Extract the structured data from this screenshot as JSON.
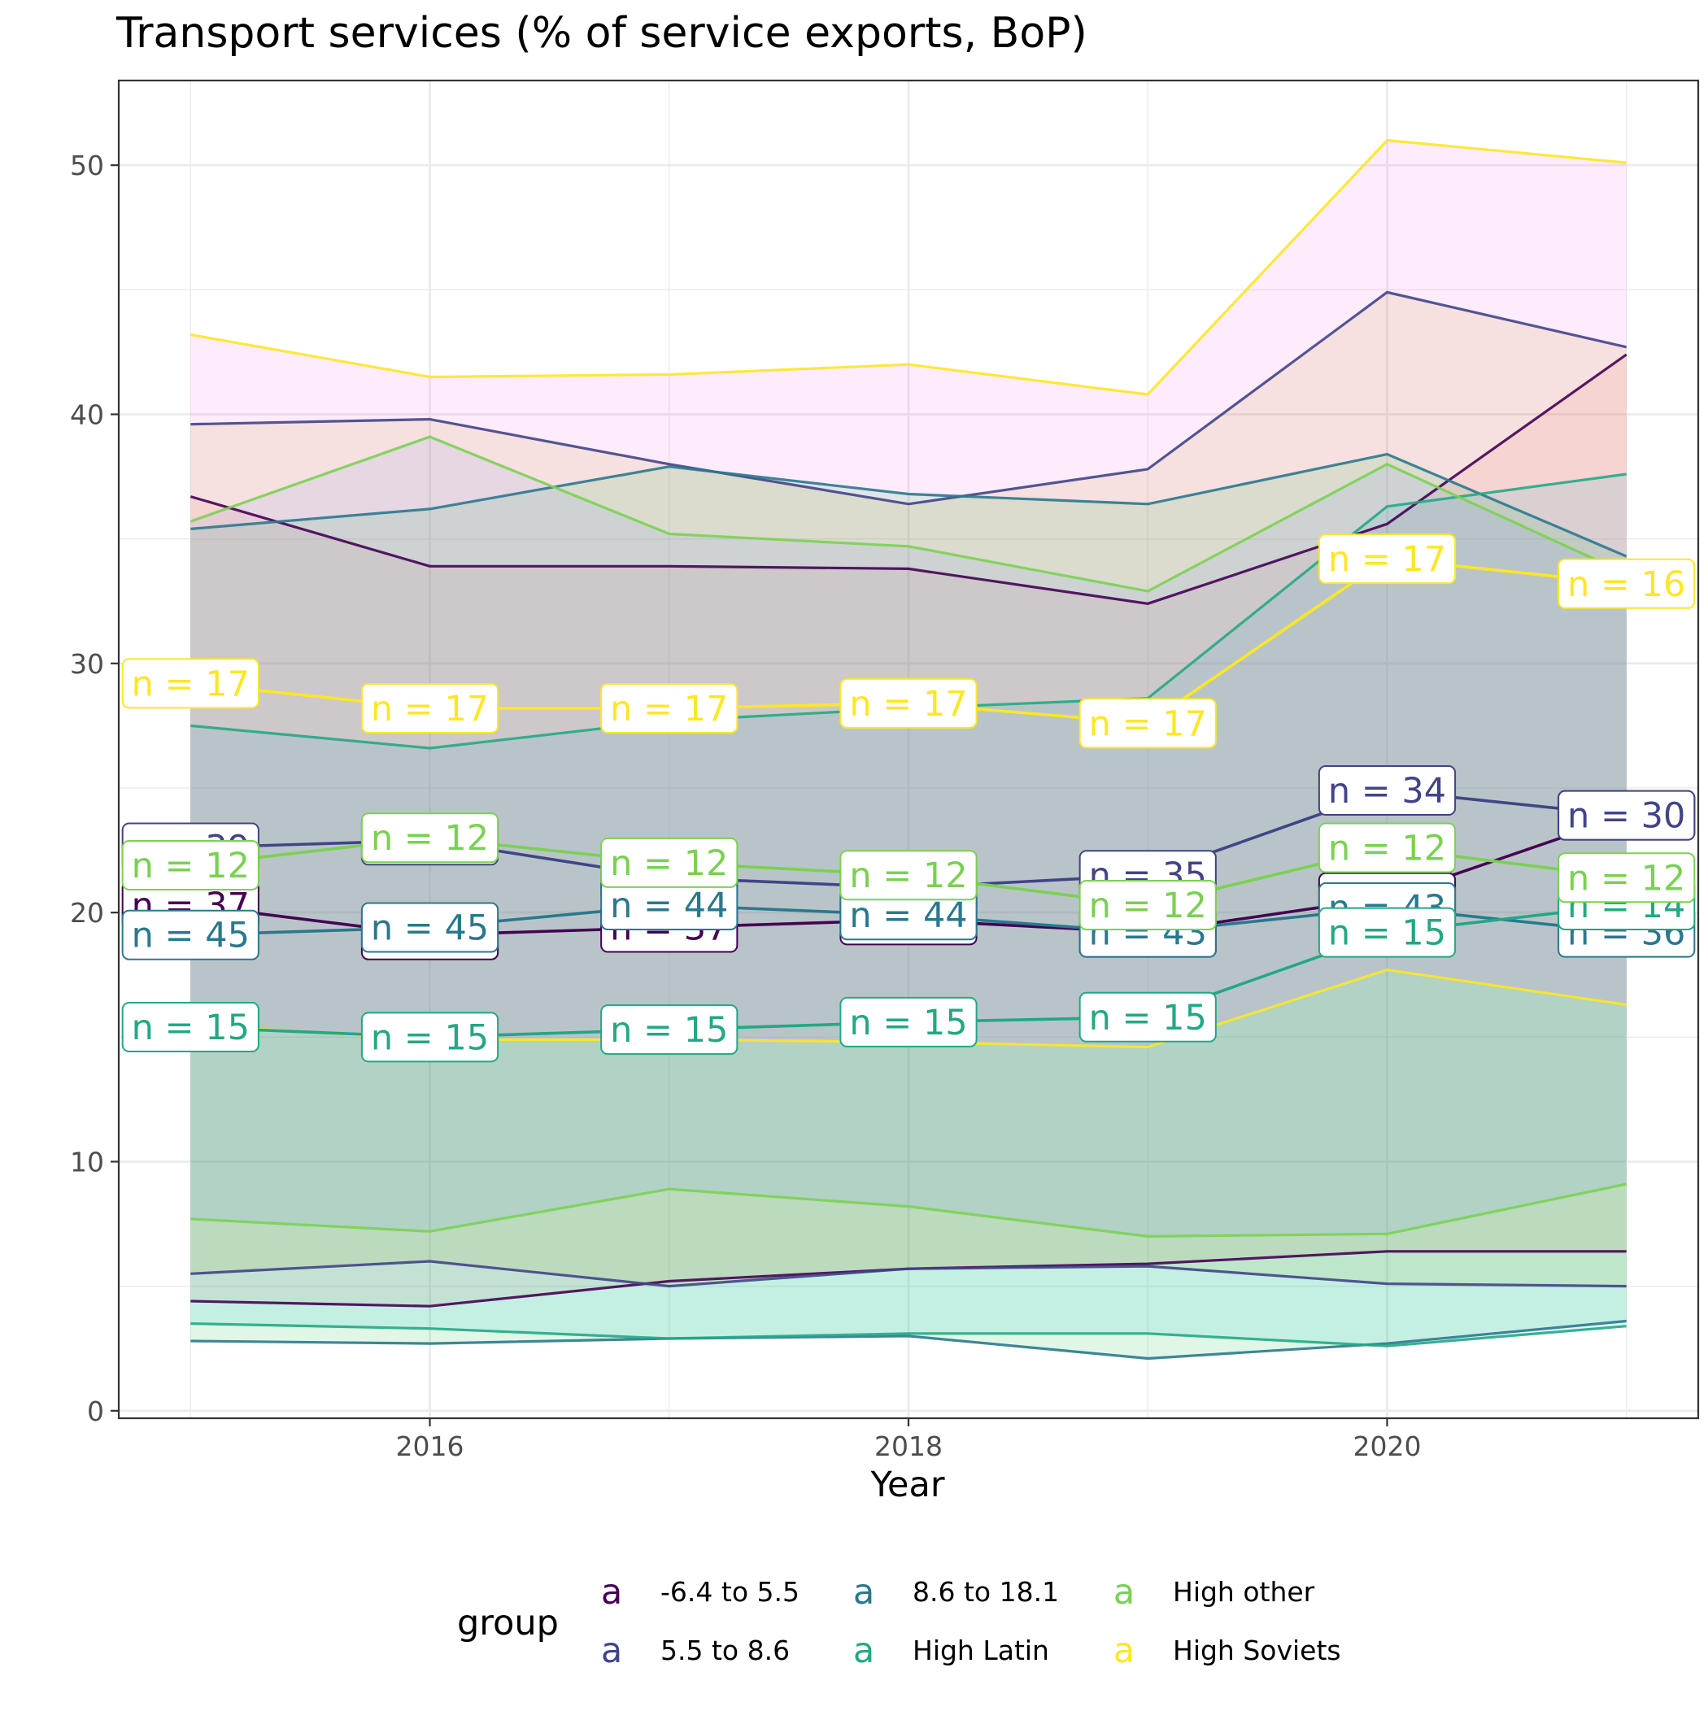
{
  "chart_data": {
    "type": "line",
    "title": "Transport services (% of service exports, BoP)",
    "xlabel": "Year",
    "ylabel": "",
    "x": [
      2015,
      2016,
      2017,
      2018,
      2019,
      2020,
      2021
    ],
    "x_ticks": [
      "2016",
      "2018",
      "2020"
    ],
    "x_tick_values": [
      2016,
      2018,
      2020
    ],
    "y_ticks": [
      "0",
      "10",
      "20",
      "30",
      "40",
      "50"
    ],
    "y_tick_values": [
      0,
      10,
      20,
      30,
      40,
      50
    ],
    "xlim": [
      2014.7,
      2021.3
    ],
    "ylim": [
      -0.3,
      53.4
    ],
    "grid": true,
    "legend": {
      "title": "group",
      "position": "bottom",
      "key_glyph": "a",
      "entries": [
        "-6.4 to 5.5",
        "5.5 to 8.6",
        "8.6 to 18.1",
        "High Latin",
        "High other",
        "High Soviets"
      ]
    },
    "series": [
      {
        "name": "-6.4 to 5.5",
        "color": "#440154",
        "fill": "#f8766d",
        "median": [
          20.3,
          19.1,
          19.4,
          19.7,
          19.2,
          20.6,
          23.9
        ],
        "upper": [
          36.7,
          33.9,
          33.9,
          33.8,
          32.4,
          35.6,
          42.4
        ],
        "lower": [
          4.4,
          4.2,
          5.2,
          5.7,
          5.9,
          6.4,
          6.4
        ],
        "n": [
          "n = 37",
          "n = 37",
          "n = 37",
          "n = 37",
          "n = 35",
          "n = 34",
          "n = 30"
        ]
      },
      {
        "name": "5.5 to 8.6",
        "color": "#414487",
        "fill": "#b79f00",
        "median": [
          22.6,
          22.9,
          21.4,
          21.0,
          21.5,
          24.9,
          23.9
        ],
        "upper": [
          39.6,
          39.8,
          38.0,
          36.4,
          37.8,
          44.9,
          42.7
        ],
        "lower": [
          5.5,
          6.0,
          5.0,
          5.7,
          5.8,
          5.1,
          5.0
        ],
        "n": [
          "n = 39",
          "n = 39",
          "n = 39",
          "n = 38",
          "n = 35",
          "n = 34",
          "n = 30"
        ]
      },
      {
        "name": "8.6 to 18.1",
        "color": "#2a788e",
        "fill": "#00ba38",
        "median": [
          19.1,
          19.4,
          20.3,
          19.9,
          19.2,
          20.2,
          19.2
        ],
        "upper": [
          35.4,
          36.2,
          37.9,
          36.8,
          36.4,
          38.4,
          34.3
        ],
        "lower": [
          2.8,
          2.7,
          2.9,
          3.0,
          2.1,
          2.7,
          3.6
        ],
        "n": [
          "n = 45",
          "n = 45",
          "n = 44",
          "n = 44",
          "n = 43",
          "n = 43",
          "n = 36"
        ]
      },
      {
        "name": "High Latin",
        "color": "#22a884",
        "fill": "#00bfc4",
        "median": [
          15.4,
          15.0,
          15.3,
          15.6,
          15.8,
          19.2,
          20.3
        ],
        "upper": [
          27.5,
          26.6,
          27.7,
          28.2,
          28.6,
          36.3,
          37.6
        ],
        "lower": [
          3.5,
          3.3,
          2.9,
          3.1,
          3.1,
          2.6,
          3.4
        ],
        "n": [
          "n = 15",
          "n = 15",
          "n = 15",
          "n = 15",
          "n = 15",
          "n = 15",
          "n = 14"
        ]
      },
      {
        "name": "High other",
        "color": "#7ad151",
        "fill": "#619cff",
        "median": [
          21.9,
          23.0,
          22.0,
          21.5,
          20.3,
          22.6,
          21.4
        ],
        "upper": [
          35.7,
          39.1,
          35.2,
          34.7,
          32.9,
          38.0,
          33.6
        ],
        "lower": [
          7.7,
          7.2,
          8.9,
          8.2,
          7.0,
          7.1,
          9.1
        ],
        "n": [
          "n = 12",
          "n = 12",
          "n = 12",
          "n = 12",
          "n = 12",
          "n = 12",
          "n = 12"
        ]
      },
      {
        "name": "High Soviets",
        "color": "#fde725",
        "fill": "#f564e3",
        "median": [
          29.2,
          28.2,
          28.2,
          28.4,
          27.6,
          34.2,
          33.2
        ],
        "upper": [
          43.2,
          41.5,
          41.6,
          42.0,
          40.8,
          51.0,
          50.1
        ],
        "lower": [
          15.5,
          14.9,
          14.9,
          14.8,
          14.6,
          17.7,
          16.3
        ],
        "n": [
          "n = 17",
          "n = 17",
          "n = 17",
          "n = 17",
          "n = 17",
          "n = 17",
          "n = 16"
        ]
      }
    ]
  }
}
